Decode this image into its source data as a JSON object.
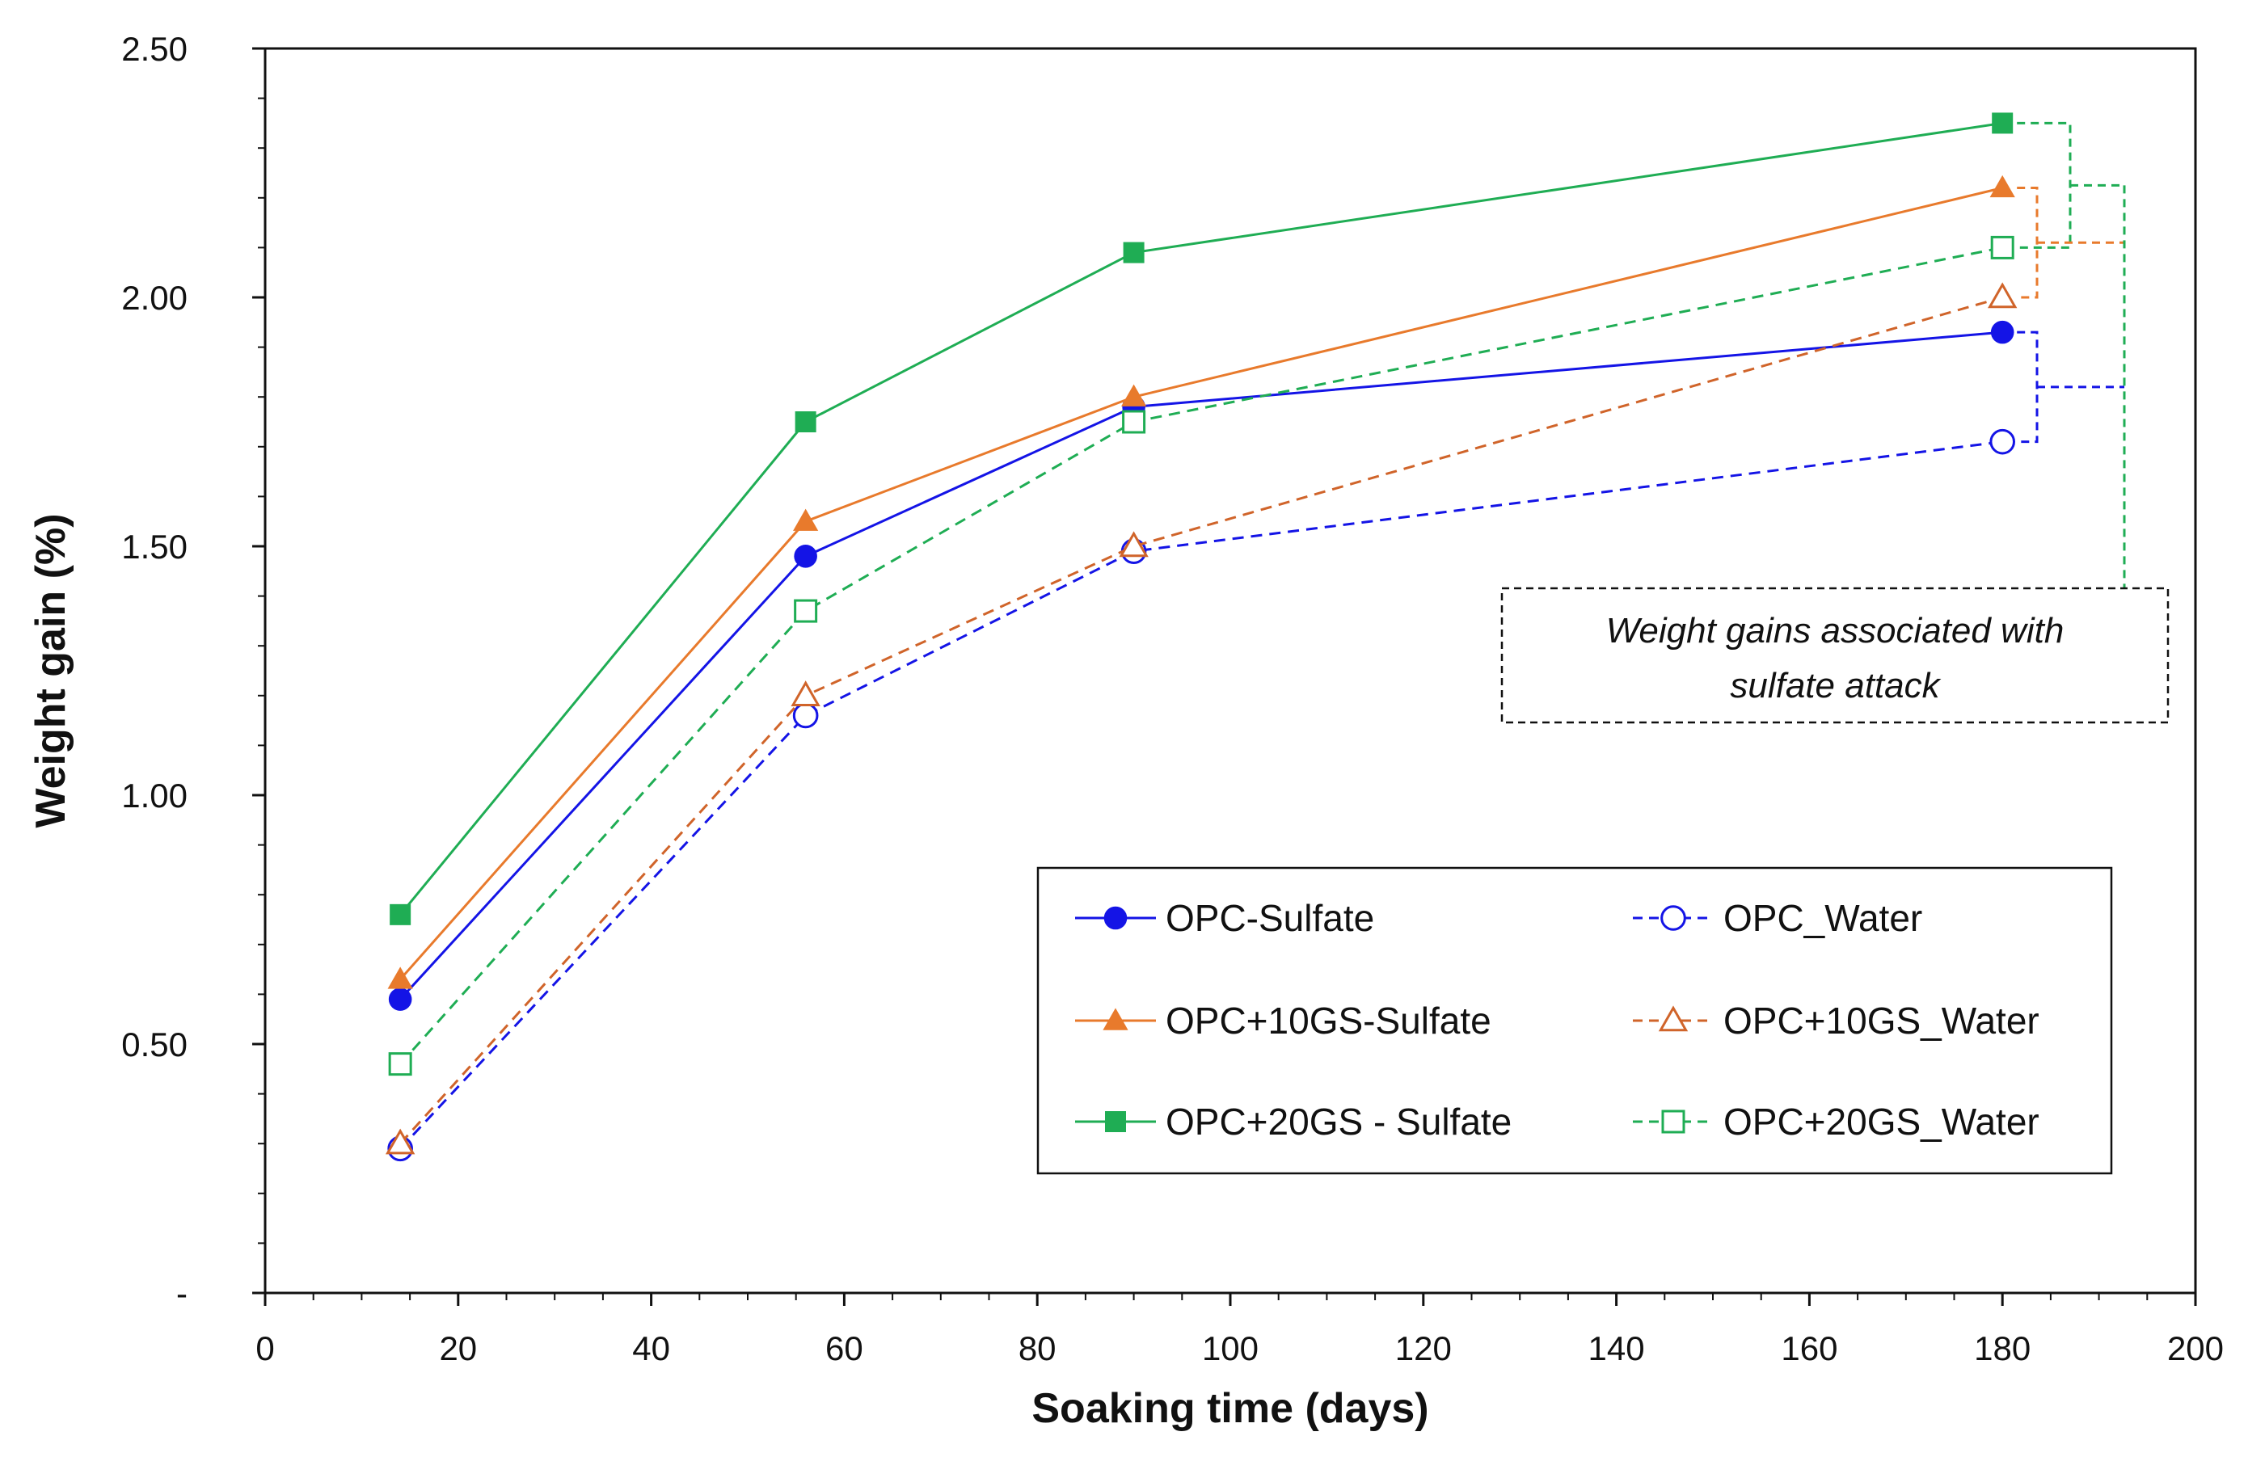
{
  "chart_data": {
    "type": "line",
    "title": "",
    "xlabel": "Soaking time (days)",
    "ylabel": "Weight gain (%)",
    "xlim": [
      0,
      200
    ],
    "ylim": [
      0,
      2.5
    ],
    "x_ticks": [
      0,
      20,
      40,
      60,
      80,
      100,
      120,
      140,
      160,
      180,
      200
    ],
    "x_tick_labels": [
      "0",
      "20",
      "40",
      "60",
      "80",
      "100",
      "120",
      "140",
      "160",
      "180",
      "200"
    ],
    "y_ticks": [
      0,
      0.5,
      1.0,
      1.5,
      2.0,
      2.5
    ],
    "y_tick_labels": [
      "-",
      "0.50",
      "1.00",
      "1.50",
      "2.00",
      "2.50"
    ],
    "grid": false,
    "legend_position": "bottom-right",
    "x": [
      14,
      56,
      90,
      180
    ],
    "series": [
      {
        "name": "OPC-Sulfate",
        "values": [
          0.59,
          1.48,
          1.78,
          1.93
        ],
        "color": "#1414e6",
        "marker": "circle",
        "filled": true,
        "dashed": false
      },
      {
        "name": "OPC_Water",
        "values": [
          0.29,
          1.16,
          1.49,
          1.71
        ],
        "color": "#1414e6",
        "marker": "circle",
        "filled": false,
        "dashed": true
      },
      {
        "name": "OPC+10GS-Sulfate",
        "values": [
          0.63,
          1.55,
          1.8,
          2.22
        ],
        "color": "#e87a2c",
        "marker": "triangle",
        "filled": true,
        "dashed": false
      },
      {
        "name": "OPC+10GS_Water",
        "values": [
          0.3,
          1.2,
          1.5,
          2.0
        ],
        "color": "#d0642a",
        "marker": "triangle",
        "filled": false,
        "dashed": true
      },
      {
        "name": "OPC+20GS - Sulfate",
        "values": [
          0.76,
          1.75,
          2.09,
          2.35
        ],
        "color": "#1fad54",
        "marker": "square",
        "filled": true,
        "dashed": false
      },
      {
        "name": "OPC+20GS_Water",
        "values": [
          0.46,
          1.37,
          1.75,
          2.1
        ],
        "color": "#1fad54",
        "marker": "square",
        "filled": false,
        "dashed": true
      }
    ],
    "legend_order": [
      0,
      1,
      2,
      3,
      4,
      5
    ],
    "annotation": {
      "lines": [
        "Weight gains associated with",
        "sulfate attack"
      ]
    }
  }
}
